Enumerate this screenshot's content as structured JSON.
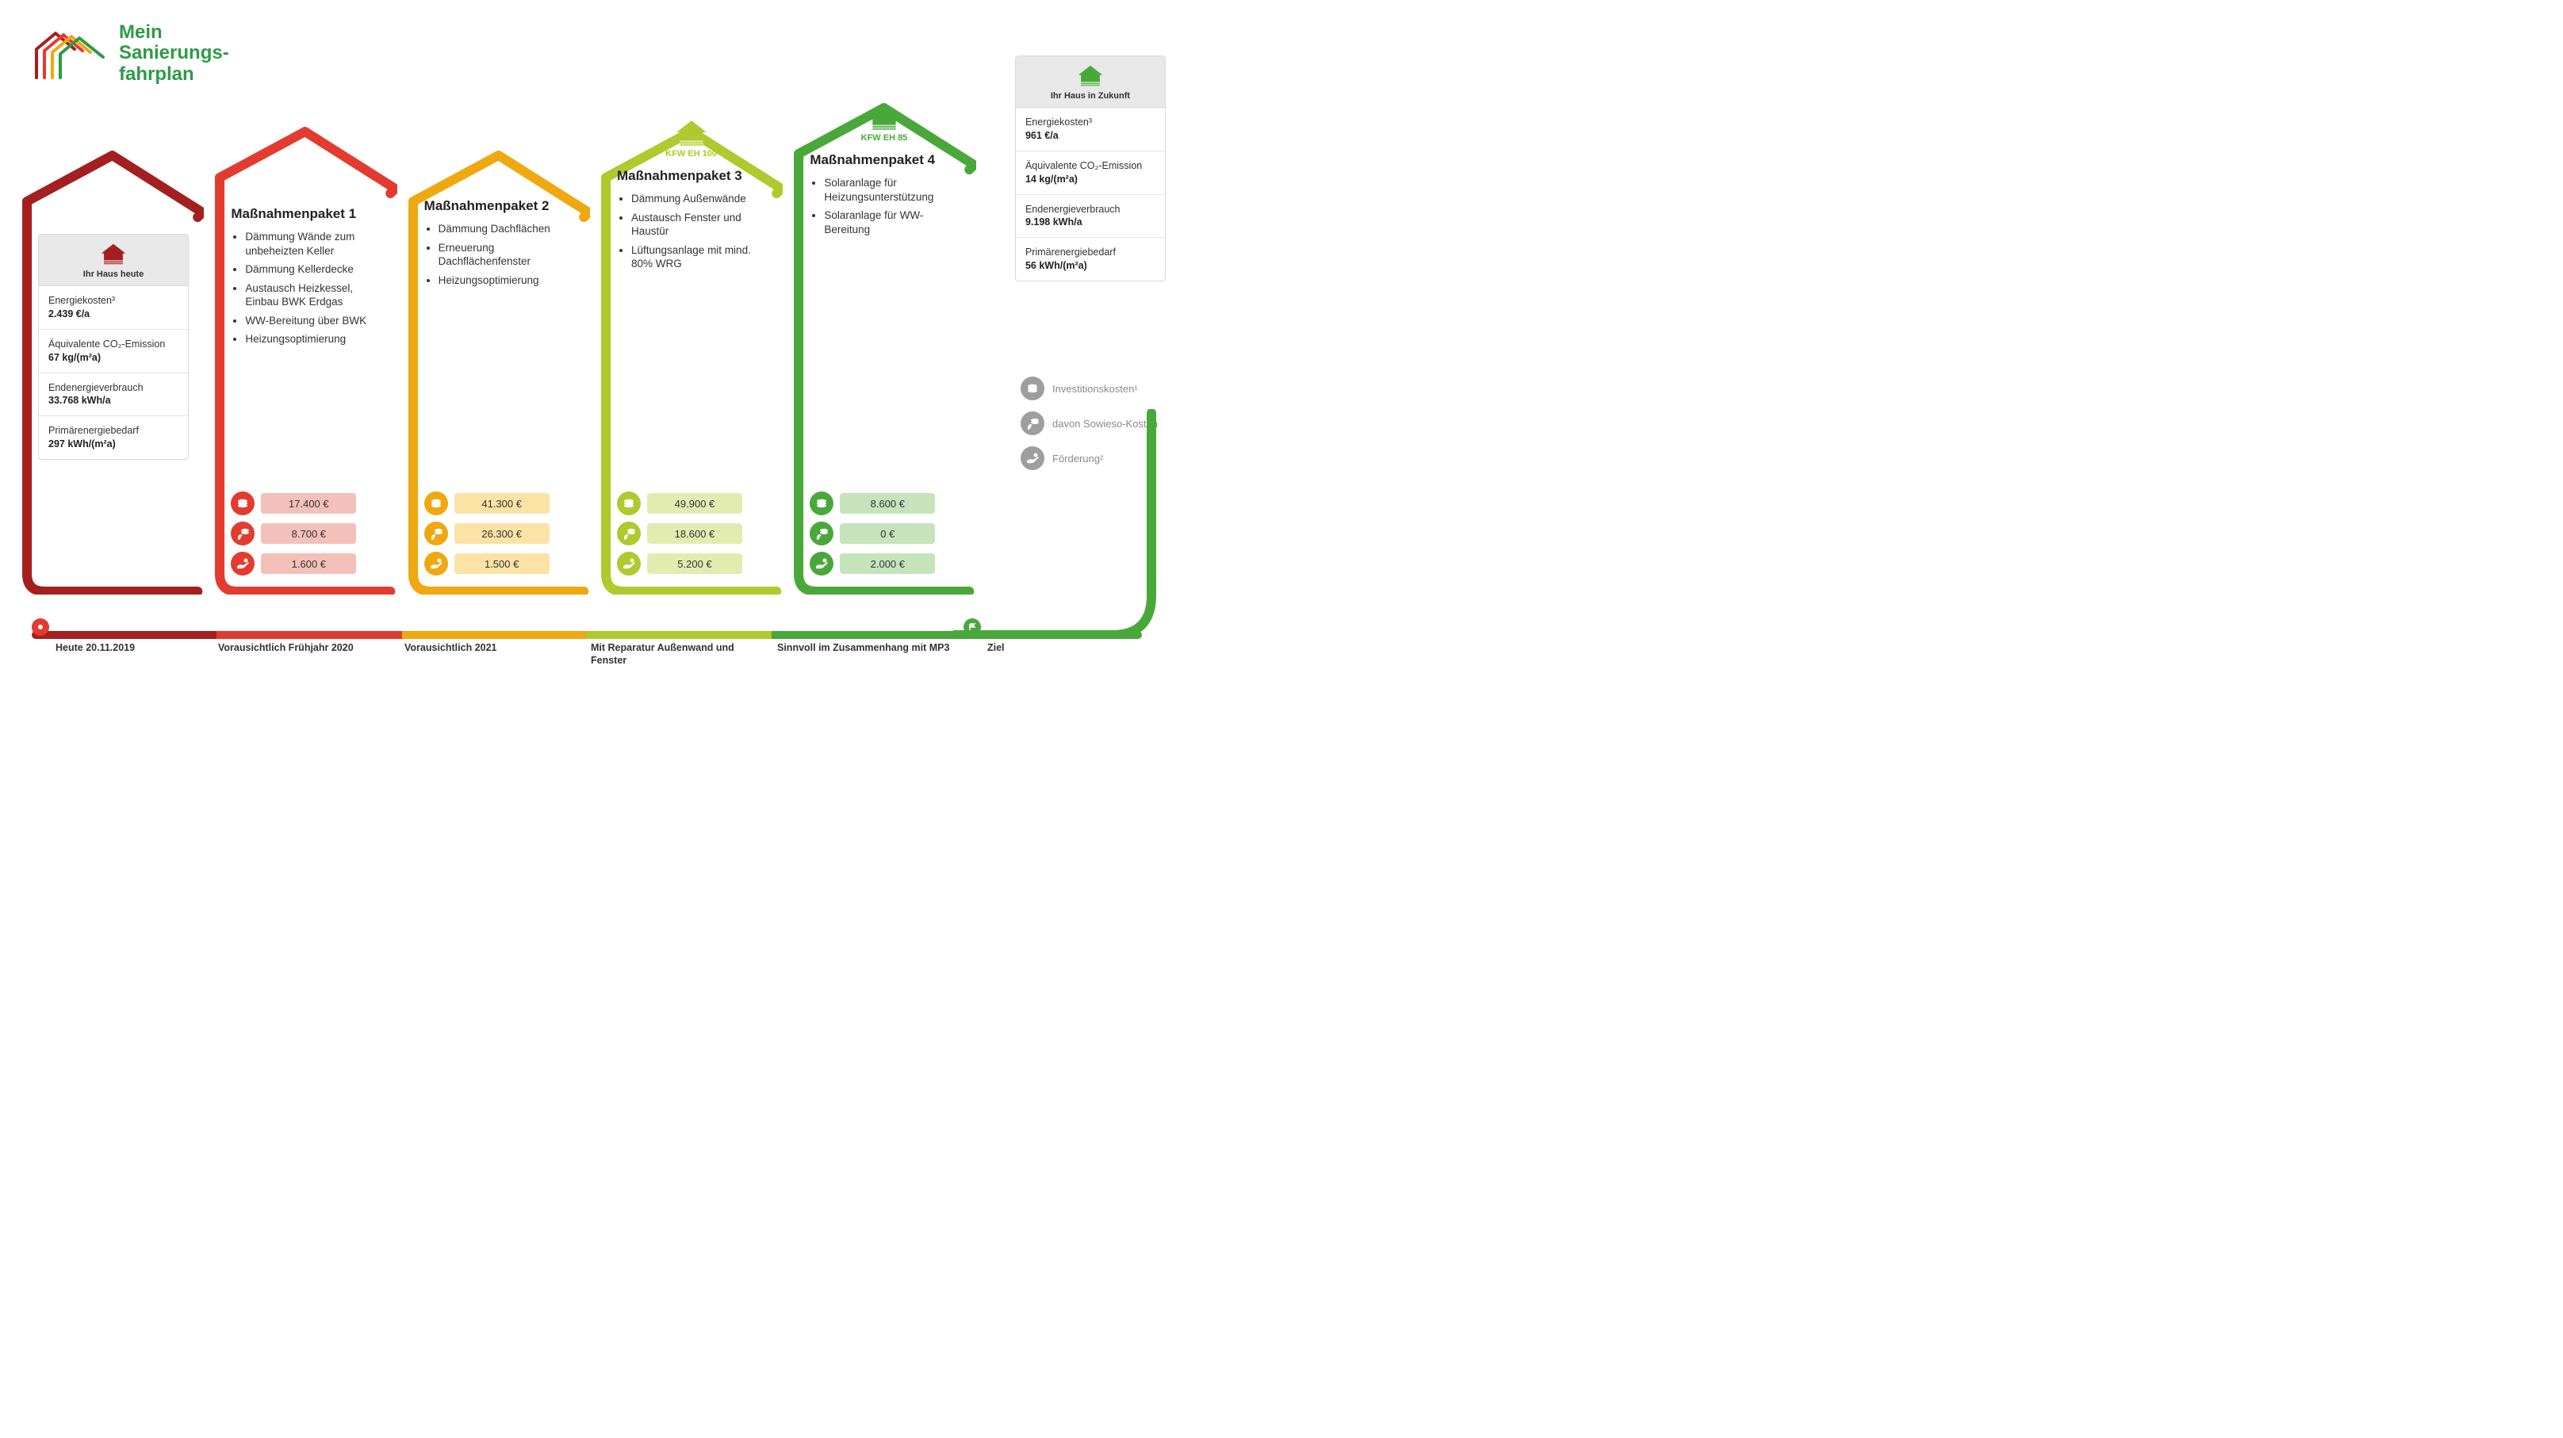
{
  "title": {
    "line1": "Mein",
    "line2": "Sanierungs-",
    "line3": "fahrplan",
    "color": "#2e9a46",
    "logo_colors": [
      "#a41f1f",
      "#e33b2f",
      "#f0a810",
      "#2e9a46"
    ]
  },
  "colors": {
    "house_today": "#a41f1f",
    "pkg1": "#e33b2f",
    "pkg2": "#f0a810",
    "pkg3": "#b0c92e",
    "pkg4": "#4aa83a",
    "house_future": "#4aa83a",
    "grey_icon": "#9e9e9e"
  },
  "pill_bg": {
    "pkg1": "#f4c0ba",
    "pkg2": "#fbe3a6",
    "pkg3": "#e2ecb0",
    "pkg4": "#c5e4bb"
  },
  "house_today": {
    "header": "Ihr Haus heute",
    "rows": [
      {
        "label": "Energiekosten³",
        "value": "2.439 €/a"
      },
      {
        "label": "Äquivalente CO₂-Emission",
        "value": "67 kg/(m²a)"
      },
      {
        "label": "Endenergieverbrauch",
        "value": "33.768 kWh/a"
      },
      {
        "label": "Primärenergiebedarf",
        "value": "297 kWh/(m²a)"
      }
    ]
  },
  "house_future": {
    "header": "Ihr Haus in Zukunft",
    "rows": [
      {
        "label": "Energiekosten³",
        "value": "961 €/a"
      },
      {
        "label": "Äquivalente CO₂-Emission",
        "value": "14 kg/(m²a)"
      },
      {
        "label": "Endenergieverbrauch",
        "value": "9.198 kWh/a"
      },
      {
        "label": "Primärenergiebedarf",
        "value": "56 kWh/(m²a)"
      }
    ]
  },
  "packages": [
    {
      "title": "Maßnahmenpaket 1",
      "color_key": "pkg1",
      "items": [
        "Dämmung Wände zum unbeheizten Keller",
        "Dämmung Kellerdecke",
        "Austausch Heizkessel, Einbau BWK Erdgas",
        "WW-Bereitung über BWK",
        "Heizungsoptimierung"
      ],
      "costs": {
        "invest": "17.400 €",
        "sowieso": "8.700 €",
        "foerder": "1.600 €"
      }
    },
    {
      "title": "Maßnahmenpaket 2",
      "color_key": "pkg2",
      "items": [
        "Dämmung Dachflächen",
        "Erneuerung Dachflächenfenster",
        "Heizungsoptimierung"
      ],
      "costs": {
        "invest": "41.300 €",
        "sowieso": "26.300 €",
        "foerder": "1.500 €"
      }
    },
    {
      "title": "Maßnahmenpaket 3",
      "color_key": "pkg3",
      "kfw": "KFW EH 100",
      "items": [
        "Dämmung Außenwände",
        "Austausch Fenster und Haustür",
        "Lüftungsanlage mit mind. 80% WRG"
      ],
      "costs": {
        "invest": "49.900 €",
        "sowieso": "18.600 €",
        "foerder": "5.200 €"
      }
    },
    {
      "title": "Maßnahmenpaket 4",
      "color_key": "pkg4",
      "kfw": "KFW EH 85",
      "items": [
        "Solaranlage für Heizungsunterstützung",
        "Solaranlage für WW-Bereitung"
      ],
      "costs": {
        "invest": "8.600 €",
        "sowieso": "0 €",
        "foerder": "2.000 €"
      }
    }
  ],
  "legend": {
    "invest": "Investitionskosten¹",
    "sowieso": "davon Sowieso-Kosten",
    "foerder": "Förderung²"
  },
  "timeline": {
    "segments": [
      {
        "color": "#a41f1f",
        "flex": 1
      },
      {
        "color": "#e33b2f",
        "flex": 1
      },
      {
        "color": "#f0a810",
        "flex": 1
      },
      {
        "color": "#b0c92e",
        "flex": 1
      },
      {
        "color": "#4aa83a",
        "flex": 2
      }
    ],
    "labels": [
      {
        "text": "Heute 20.11.2019",
        "icon": "pin",
        "icon_color": "#e33b2f"
      },
      {
        "text": "Vorausichtlich Frühjahr 2020"
      },
      {
        "text": "Vorausichtlich 2021"
      },
      {
        "text": "Mit Reparatur Außenwand und Fenster"
      },
      {
        "text": "Sinnvoll im Zusammenhang mit MP3"
      },
      {
        "text": "Ziel",
        "icon": "flag",
        "icon_color": "#4aa83a"
      }
    ]
  },
  "layout": {
    "house_heights": [
      560,
      590,
      560,
      590,
      620,
      0
    ],
    "inner_top": [
      225,
      190,
      180,
      80,
      60,
      0
    ],
    "stroke_width": 12
  }
}
